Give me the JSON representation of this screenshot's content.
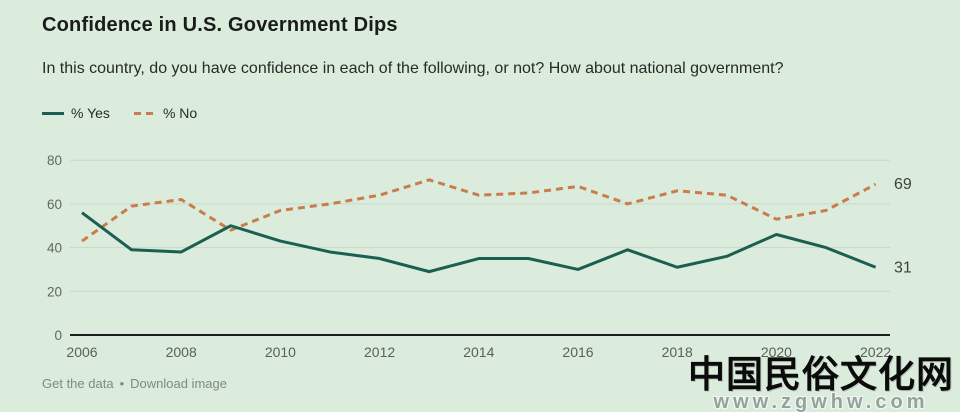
{
  "header": {
    "title": "Confidence in U.S. Government Dips",
    "subtitle": "In this country, do you have confidence in each of the following, or not? How about national government?"
  },
  "legend": {
    "items": [
      {
        "label": "% Yes",
        "color": "#1b5f52",
        "style": "solid"
      },
      {
        "label": "% No",
        "color": "#c87d4a",
        "style": "dashed"
      }
    ]
  },
  "chart_data": {
    "type": "line",
    "x": [
      2006,
      2007,
      2008,
      2009,
      2010,
      2011,
      2012,
      2013,
      2014,
      2015,
      2016,
      2017,
      2018,
      2019,
      2020,
      2021,
      2022
    ],
    "series": [
      {
        "name": "% Yes",
        "color": "#1b5f52",
        "dash": "solid",
        "values": [
          56,
          39,
          38,
          50,
          43,
          38,
          35,
          29,
          35,
          35,
          30,
          39,
          31,
          36,
          46,
          40,
          31
        ],
        "end_label": "31"
      },
      {
        "name": "% No",
        "color": "#c87d4a",
        "dash": "dashed",
        "values": [
          43,
          59,
          62,
          48,
          57,
          60,
          64,
          71,
          64,
          65,
          68,
          60,
          66,
          64,
          53,
          57,
          69
        ],
        "end_label": "69"
      }
    ],
    "xticks": [
      2006,
      2008,
      2010,
      2012,
      2014,
      2016,
      2018,
      2020,
      2022
    ],
    "yticks": [
      0,
      20,
      40,
      60,
      80
    ],
    "ylim": [
      0,
      80
    ],
    "grid": true,
    "legend_position": "top-left",
    "title": "Confidence in U.S. Government Dips",
    "xlabel": "",
    "ylabel": ""
  },
  "footer": {
    "get_data_label": "Get the data",
    "separator": "•",
    "download_label": "Download image"
  },
  "watermark": {
    "line1": "中国民俗文化网",
    "line2": "www.zgwhw.com"
  },
  "colors": {
    "background": "#dbecdc",
    "yes_line": "#1b5f52",
    "no_line": "#c87d4a",
    "grid": "#c9d7ca",
    "axis": "#1c1f1d",
    "tick_text": "#5e6862"
  }
}
